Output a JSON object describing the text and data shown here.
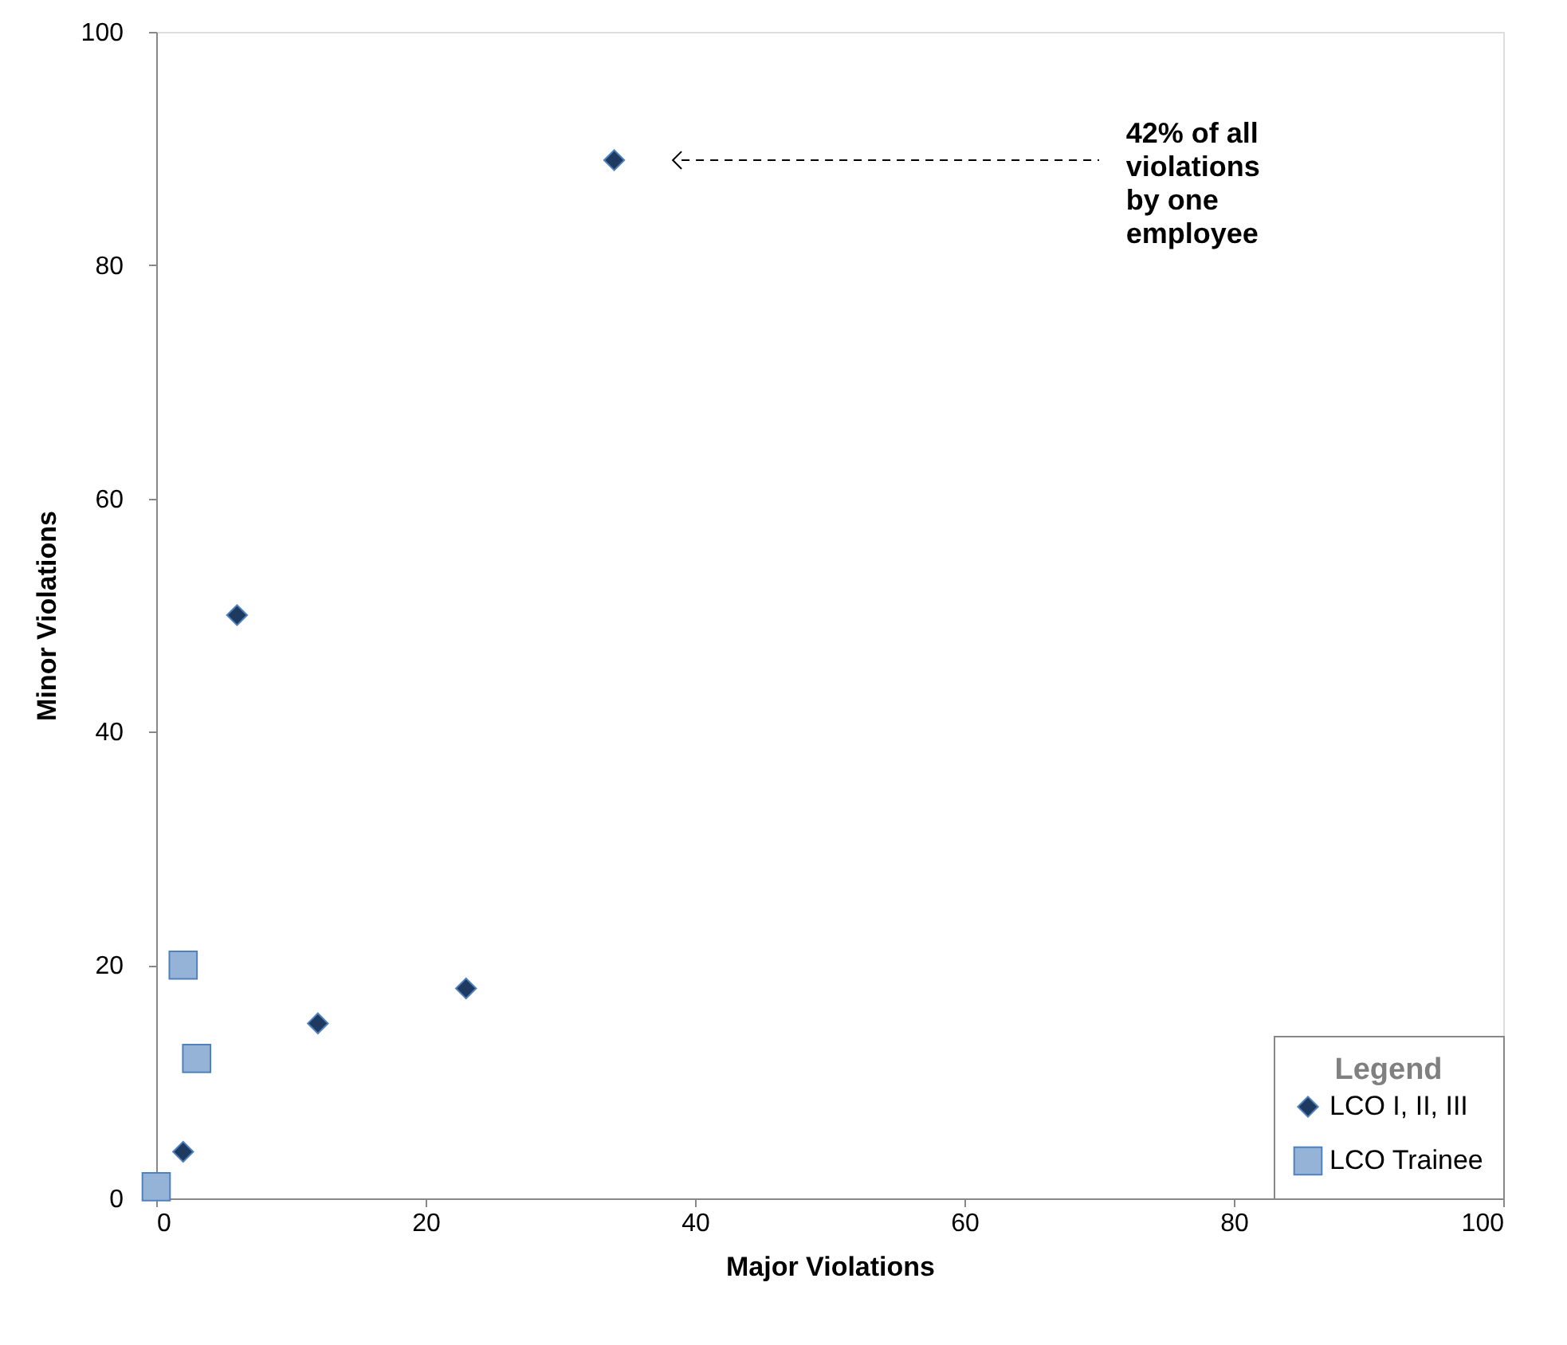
{
  "chart_data": {
    "type": "scatter",
    "xlabel": "Major Violations",
    "ylabel": "Minor Violations",
    "legend_title": "Legend",
    "series": [
      {
        "name": "LCO I, II, III",
        "color": "#1f3a60",
        "marker": "diamond",
        "x": [
          34,
          6,
          12,
          23,
          2
        ],
        "values": [
          89,
          50,
          15,
          18,
          4
        ]
      },
      {
        "name": "LCO Trainee",
        "color": "#95b3d7",
        "marker": "square",
        "x": [
          2,
          3,
          0
        ],
        "values": [
          20,
          12,
          1
        ]
      }
    ],
    "xlim": [
      0,
      100
    ],
    "ylim": [
      0,
      100
    ],
    "xticks": [
      0,
      20,
      40,
      60,
      80,
      100
    ],
    "yticks": [
      0,
      20,
      40,
      60,
      80,
      100
    ],
    "grid": false,
    "legend": "bottom right",
    "annotations": [
      "42% of all violations by one employee"
    ]
  }
}
